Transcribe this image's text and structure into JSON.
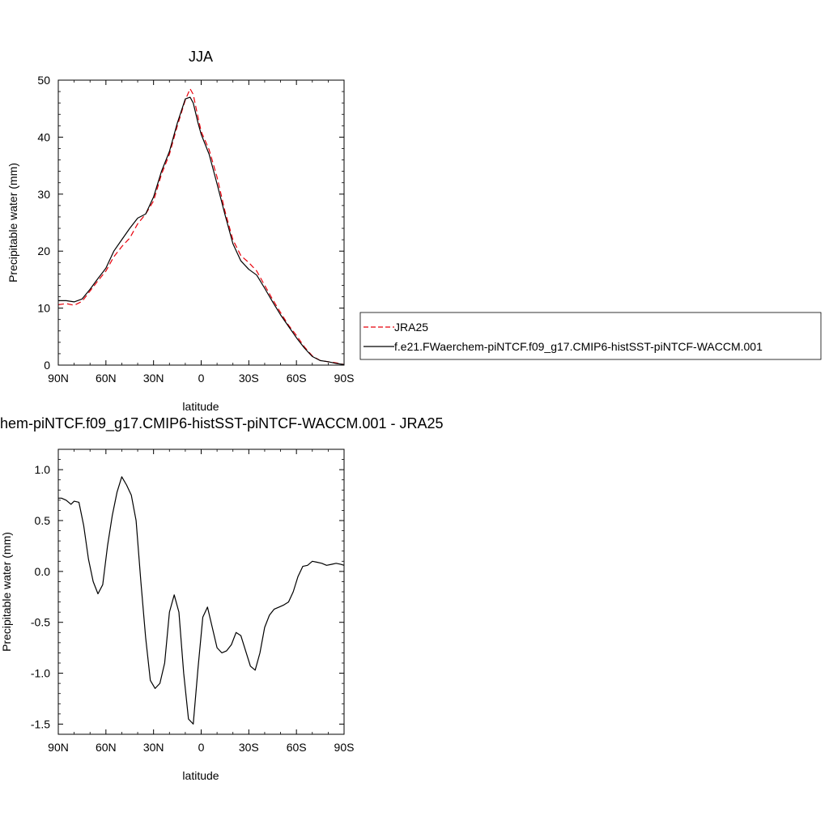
{
  "chart_data": [
    {
      "type": "line",
      "title": "JJA",
      "xlabel": "latitude",
      "ylabel": "Precipitable water (mm)",
      "xlim": [
        -90,
        90
      ],
      "ylim": [
        0,
        50
      ],
      "x_ticks": [
        {
          "value": -90,
          "label": "90N"
        },
        {
          "value": -60,
          "label": "60N"
        },
        {
          "value": -30,
          "label": "30N"
        },
        {
          "value": 0,
          "label": "0"
        },
        {
          "value": 30,
          "label": "30S"
        },
        {
          "value": 60,
          "label": "60S"
        },
        {
          "value": 90,
          "label": "90S"
        }
      ],
      "y_ticks": [
        {
          "value": 0,
          "label": "0"
        },
        {
          "value": 10,
          "label": "10"
        },
        {
          "value": 20,
          "label": "20"
        },
        {
          "value": 30,
          "label": "30"
        },
        {
          "value": 40,
          "label": "40"
        },
        {
          "value": 50,
          "label": "50"
        }
      ],
      "legend_position": "right",
      "series": [
        {
          "name": "JRA25",
          "color": "#e8000b",
          "dash": "dashed",
          "x": [
            -90,
            -85,
            -80,
            -75,
            -70,
            -65,
            -60,
            -55,
            -50,
            -45,
            -40,
            -35,
            -30,
            -25,
            -20,
            -15,
            -10,
            -7,
            -5,
            -2,
            0,
            5,
            10,
            15,
            20,
            25,
            30,
            35,
            40,
            45,
            50,
            55,
            60,
            65,
            70,
            75,
            80,
            85,
            90
          ],
          "values": [
            10.6,
            10.8,
            10.5,
            11.2,
            13.0,
            14.8,
            16.5,
            19.0,
            20.8,
            22.3,
            24.8,
            26.5,
            28.8,
            33.5,
            37.0,
            42.0,
            46.5,
            48.5,
            47.5,
            43.5,
            41.0,
            37.8,
            33.0,
            27.0,
            22.0,
            19.2,
            18.0,
            16.5,
            14.0,
            11.5,
            9.2,
            7.0,
            5.2,
            3.2,
            1.6,
            0.8,
            0.6,
            0.4,
            0.1
          ]
        },
        {
          "name": "f.e21.FWaerchem-piNTCF.f09_g17.CMIP6-histSST-piNTCF-WACCM.001",
          "color": "#000000",
          "dash": "solid",
          "x": [
            -90,
            -85,
            -80,
            -75,
            -70,
            -65,
            -60,
            -55,
            -50,
            -45,
            -40,
            -35,
            -30,
            -25,
            -20,
            -15,
            -10,
            -7,
            -5,
            -2,
            0,
            5,
            10,
            15,
            20,
            25,
            30,
            35,
            40,
            45,
            50,
            55,
            60,
            65,
            70,
            75,
            80,
            85,
            90
          ],
          "values": [
            11.3,
            11.3,
            11.1,
            11.6,
            13.3,
            15.2,
            17.0,
            20.0,
            22.0,
            24.0,
            25.8,
            26.5,
            29.5,
            34.0,
            37.5,
            42.5,
            46.7,
            47.0,
            46.0,
            42.5,
            40.5,
            37.0,
            31.8,
            26.4,
            21.3,
            18.3,
            16.8,
            15.8,
            13.5,
            11.1,
            8.8,
            6.8,
            4.8,
            3.0,
            1.5,
            0.8,
            0.6,
            0.3,
            0.1
          ]
        }
      ]
    },
    {
      "type": "line",
      "title": "hem-piNTCF.f09_g17.CMIP6-histSST-piNTCF-WACCM.001 - JRA25",
      "xlabel": "latitude",
      "ylabel": "Precipitable water (mm)",
      "xlim": [
        -90,
        90
      ],
      "ylim": [
        -1.6,
        1.2
      ],
      "x_ticks": [
        {
          "value": -90,
          "label": "90N"
        },
        {
          "value": -60,
          "label": "60N"
        },
        {
          "value": -30,
          "label": "30N"
        },
        {
          "value": 0,
          "label": "0"
        },
        {
          "value": 30,
          "label": "30S"
        },
        {
          "value": 60,
          "label": "60S"
        },
        {
          "value": 90,
          "label": "90S"
        }
      ],
      "y_ticks": [
        {
          "value": 1.0,
          "label": "1.0"
        },
        {
          "value": 0.5,
          "label": "0.5"
        },
        {
          "value": 0.0,
          "label": "0.0"
        },
        {
          "value": -0.5,
          "label": "-0.5"
        },
        {
          "value": -1.0,
          "label": "-1.0"
        },
        {
          "value": -1.5,
          "label": "-1.5"
        }
      ],
      "series": [
        {
          "color": "#000000",
          "dash": "solid",
          "x": [
            -90,
            -88,
            -85,
            -82,
            -80,
            -77,
            -74,
            -71,
            -68,
            -65,
            -62,
            -59,
            -56,
            -53,
            -50,
            -47,
            -44,
            -41,
            -38,
            -35,
            -32,
            -29,
            -26,
            -23,
            -20,
            -17,
            -14,
            -11,
            -8,
            -5,
            -2,
            1,
            4,
            7,
            10,
            13,
            16,
            19,
            22,
            25,
            28,
            31,
            34,
            37,
            40,
            43,
            46,
            49,
            52,
            55,
            58,
            61,
            64,
            67,
            70,
            73,
            76,
            79,
            82,
            85,
            88,
            90
          ],
          "values": [
            0.72,
            0.72,
            0.7,
            0.66,
            0.69,
            0.68,
            0.45,
            0.12,
            -0.1,
            -0.22,
            -0.13,
            0.25,
            0.55,
            0.78,
            0.93,
            0.85,
            0.75,
            0.5,
            -0.1,
            -0.65,
            -1.07,
            -1.15,
            -1.1,
            -0.9,
            -0.4,
            -0.23,
            -0.4,
            -1.0,
            -1.45,
            -1.5,
            -0.95,
            -0.45,
            -0.35,
            -0.55,
            -0.75,
            -0.8,
            -0.78,
            -0.72,
            -0.6,
            -0.63,
            -0.78,
            -0.93,
            -0.97,
            -0.8,
            -0.55,
            -0.43,
            -0.37,
            -0.35,
            -0.33,
            -0.3,
            -0.2,
            -0.05,
            0.05,
            0.06,
            0.1,
            0.09,
            0.08,
            0.06,
            0.07,
            0.08,
            0.07,
            0.06
          ]
        }
      ]
    }
  ]
}
